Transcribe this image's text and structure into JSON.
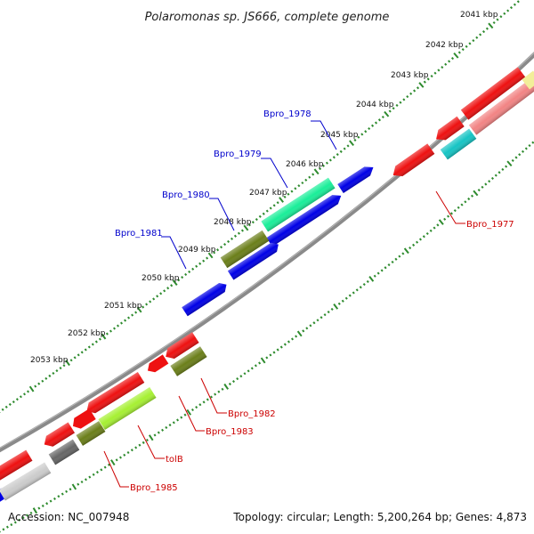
{
  "title": "Polaromonas sp. JS666, complete genome",
  "footer": {
    "accession": "Accession: NC_007948",
    "summary": "Topology: circular; Length: 5,200,264 bp; Genes: 4,873"
  },
  "colors": {
    "backbone": "#8a8a8a",
    "ticks": "#2e8b2e",
    "label_forward": "#0000cc",
    "label_reverse": "#cc0000"
  },
  "scale_labels": [
    "2041 kbp",
    "2042 kbp",
    "2043 kbp",
    "2044 kbp",
    "2045 kbp",
    "2046 kbp",
    "2047 kbp",
    "2048 kbp",
    "2049 kbp",
    "2050 kbp",
    "2051 kbp",
    "2052 kbp",
    "2053 kbp"
  ],
  "forward_labels": [
    "Bpro_1978",
    "Bpro_1979",
    "Bpro_1980",
    "Bpro_1981"
  ],
  "reverse_labels": [
    "Bpro_1977",
    "Bpro_1982",
    "Bpro_1983",
    "tolB",
    "Bpro_1985"
  ],
  "gene_color_names": [
    "red",
    "blue",
    "light-red",
    "cyan",
    "spring-green",
    "olive",
    "dark-gray",
    "light-gray",
    "yellow-green",
    "pale-yellow"
  ]
}
